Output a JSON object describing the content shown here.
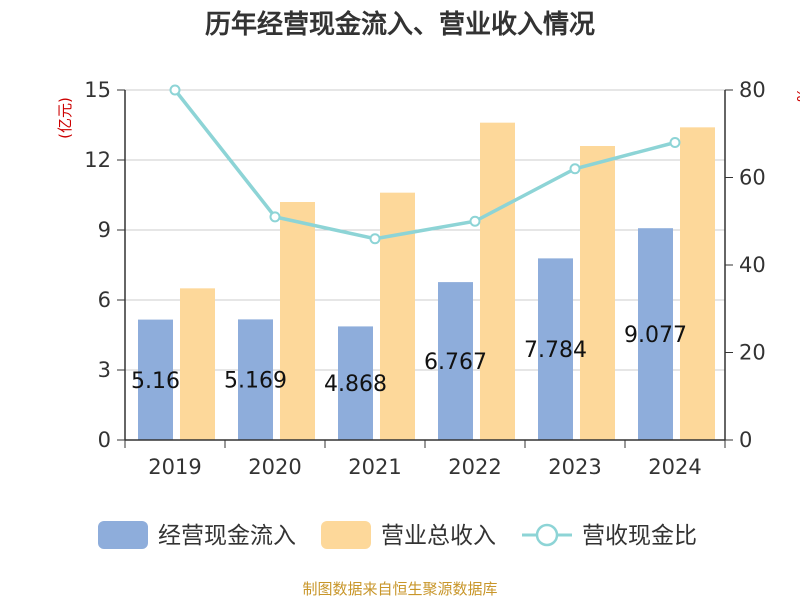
{
  "title": "历年经营现金流入、营业收入情况",
  "source": "制图数据来自恒生聚源数据库",
  "chart_data": {
    "type": "bar",
    "categories": [
      "2019",
      "2020",
      "2021",
      "2022",
      "2023",
      "2024"
    ],
    "series": [
      {
        "name": "经营现金流入",
        "kind": "bar",
        "axis": "left",
        "color": "#8eaddb",
        "values": [
          5.16,
          5.169,
          4.868,
          6.767,
          7.784,
          9.077
        ],
        "labels": [
          "5.16",
          "5.169",
          "4.868",
          "6.767",
          "7.784",
          "9.077"
        ]
      },
      {
        "name": "营业总收入",
        "kind": "bar",
        "axis": "left",
        "color": "#fdd89a",
        "values": [
          6.5,
          10.2,
          10.6,
          13.6,
          12.6,
          13.4
        ]
      },
      {
        "name": "营收现金比",
        "kind": "line",
        "axis": "right",
        "color": "#8dd4d6",
        "values": [
          80,
          51,
          46,
          50,
          62,
          68
        ]
      }
    ],
    "left_axis": {
      "unit": "(亿元)",
      "min": 0,
      "max": 15,
      "ticks": [
        0,
        3,
        6,
        9,
        12,
        15
      ]
    },
    "right_axis": {
      "unit": "%",
      "min": 0,
      "max": 80,
      "ticks": [
        0,
        20,
        40,
        60,
        80
      ]
    },
    "grid": true,
    "legend_position": "bottom"
  }
}
